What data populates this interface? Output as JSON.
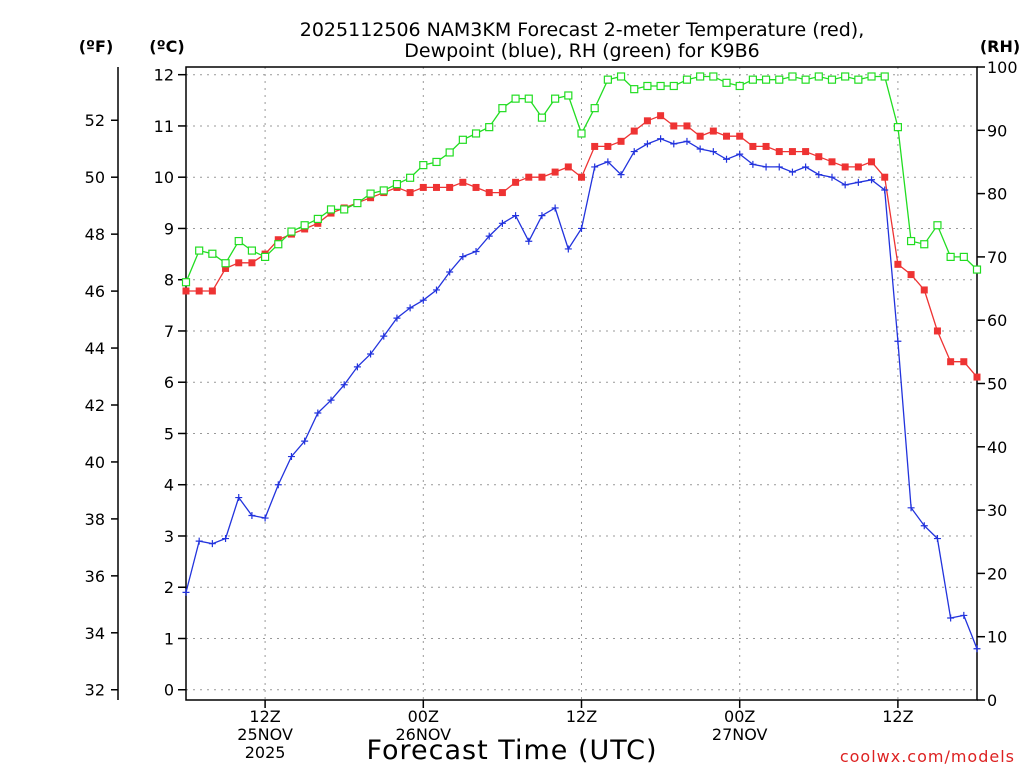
{
  "title_line1": "2025112506 NAM3KM Forecast 2-meter Temperature (red),",
  "title_line2": "Dewpoint (blue), RH (green) for K9B6",
  "units": {
    "fahrenheit": "(ºF)",
    "celsius": "(ºC)",
    "rh": "(RH)"
  },
  "xlabel": "Forecast Time (UTC)",
  "credit": "coolwx.com/models",
  "colors": {
    "temperature": "#ee3333",
    "dewpoint": "#2233dd",
    "rh": "#22dd22",
    "credit": "#dd2222",
    "grid": "#999999"
  },
  "chart_data": {
    "type": "line",
    "title": "2025112506 NAM3KM Forecast 2-meter Temperature (red), Dewpoint (blue), RH (green) for K9B6",
    "xlabel": "Forecast Time (UTC)",
    "x_hours": [
      0,
      1,
      2,
      3,
      4,
      5,
      6,
      7,
      8,
      9,
      10,
      11,
      12,
      13,
      14,
      15,
      16,
      17,
      18,
      19,
      20,
      21,
      22,
      23,
      24,
      25,
      26,
      27,
      28,
      29,
      30,
      31,
      32,
      33,
      34,
      35,
      36,
      37,
      38,
      39,
      40,
      41,
      42,
      43,
      44,
      45,
      46,
      47,
      48,
      49,
      50,
      51,
      52,
      53,
      54,
      55,
      56,
      57,
      58,
      59,
      60
    ],
    "xlim": [
      0,
      60
    ],
    "x_ticks": [
      {
        "hour": 6,
        "lines": [
          "12Z",
          "25NOV",
          "2025"
        ]
      },
      {
        "hour": 18,
        "lines": [
          "00Z",
          "26NOV"
        ]
      },
      {
        "hour": 30,
        "lines": [
          "12Z"
        ]
      },
      {
        "hour": 42,
        "lines": [
          "00Z",
          "27NOV"
        ]
      },
      {
        "hour": 54,
        "lines": [
          "12Z"
        ]
      }
    ],
    "y_celsius": {
      "ylim": [
        -0.2,
        12.15
      ],
      "ticks": [
        0,
        1,
        2,
        3,
        4,
        5,
        6,
        7,
        8,
        9,
        10,
        11,
        12
      ]
    },
    "y_fahrenheit": {
      "ticks": [
        32,
        34,
        36,
        38,
        40,
        42,
        44,
        46,
        48,
        50,
        52
      ]
    },
    "y_rh": {
      "ylim": [
        0,
        100
      ],
      "ticks": [
        0,
        10,
        20,
        30,
        40,
        50,
        60,
        70,
        80,
        90,
        100
      ]
    },
    "series": [
      {
        "name": "Temperature (red)",
        "unit": "C",
        "marker": "filled-square",
        "values": [
          7.78,
          7.78,
          7.78,
          8.22,
          8.33,
          8.33,
          8.5,
          8.78,
          8.89,
          8.99,
          9.1,
          9.3,
          9.4,
          9.5,
          9.6,
          9.7,
          9.8,
          9.7,
          9.8,
          9.8,
          9.8,
          9.9,
          9.8,
          9.7,
          9.7,
          9.9,
          10.0,
          10.0,
          10.1,
          10.2,
          10.0,
          10.6,
          10.6,
          10.7,
          10.9,
          11.1,
          11.2,
          11.0,
          11.0,
          10.8,
          10.9,
          10.8,
          10.8,
          10.6,
          10.6,
          10.5,
          10.5,
          10.5,
          10.4,
          10.3,
          10.2,
          10.2,
          10.3,
          10.0,
          8.3,
          8.1,
          7.8,
          7.0,
          6.4,
          6.4,
          6.1
        ]
      },
      {
        "name": "Dewpoint (blue)",
        "unit": "C",
        "marker": "plus",
        "values": [
          1.9,
          2.9,
          2.85,
          2.95,
          3.75,
          3.4,
          3.35,
          4.0,
          4.55,
          4.85,
          5.4,
          5.65,
          5.95,
          6.3,
          6.55,
          6.9,
          7.25,
          7.45,
          7.6,
          7.8,
          8.15,
          8.45,
          8.55,
          8.85,
          9.1,
          9.25,
          8.75,
          9.25,
          9.4,
          8.6,
          9.0,
          10.2,
          10.3,
          10.05,
          10.5,
          10.65,
          10.75,
          10.65,
          10.7,
          10.55,
          10.5,
          10.35,
          10.45,
          10.25,
          10.2,
          10.2,
          10.1,
          10.2,
          10.05,
          10.0,
          9.85,
          9.9,
          9.95,
          9.75,
          6.8,
          3.55,
          3.2,
          2.95,
          1.4,
          1.45,
          0.8
        ]
      },
      {
        "name": "RH (green)",
        "unit": "%",
        "marker": "open-square",
        "values": [
          66,
          71,
          70.5,
          69,
          72.5,
          71,
          70,
          72,
          74,
          75,
          76,
          77.5,
          77.5,
          78.5,
          80,
          80.5,
          81.5,
          82.5,
          84.5,
          85,
          86.5,
          88.5,
          89.5,
          90.5,
          93.5,
          95,
          95,
          92,
          95,
          95.5,
          89.5,
          93.5,
          98,
          98.5,
          96.5,
          97,
          97,
          97,
          98,
          98.5,
          98.5,
          97.5,
          97,
          98,
          98,
          98,
          98.5,
          98,
          98.5,
          98,
          98.5,
          98,
          98.5,
          98.5,
          90.5,
          72.5,
          72,
          75,
          70,
          70,
          68
        ]
      }
    ]
  }
}
